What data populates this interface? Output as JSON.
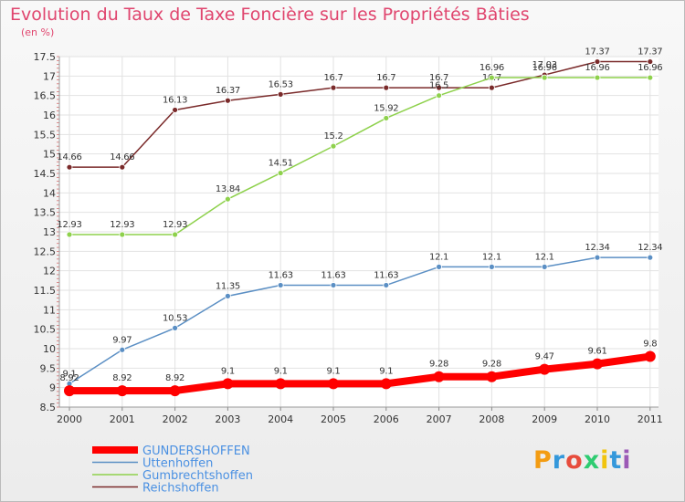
{
  "header": {
    "title": "Evolution du Taux de Taxe Foncière sur les Propriétés Bâties",
    "unit": "(en %)"
  },
  "brand": {
    "text": "Proxiti",
    "colors": [
      "#f39c12",
      "#3498db",
      "#e74c3c",
      "#2ecc71",
      "#f1c40f",
      "#3498db",
      "#9b59b6"
    ]
  },
  "chart_data": {
    "type": "line",
    "title": "Evolution du Taux de Taxe Foncière sur les Propriétés Bâties",
    "ylabel": "(en %)",
    "xlabel": "",
    "x": [
      "2000",
      "2001",
      "2002",
      "2003",
      "2004",
      "2005",
      "2006",
      "2007",
      "2008",
      "2009",
      "2010",
      "2011"
    ],
    "ylim": [
      8.5,
      17.5
    ],
    "yticks": [
      "8.5",
      "9",
      "9.5",
      "10",
      "10.5",
      "11",
      "11.5",
      "12",
      "12.5",
      "13",
      "13.5",
      "14",
      "14.5",
      "15",
      "15.5",
      "16",
      "16.5",
      "17",
      "17.5"
    ],
    "grid": true,
    "legend_position": "bottom-left",
    "series": [
      {
        "name": "GUNDERSHOFFEN",
        "color": "#ff0000",
        "width": 8,
        "values": [
          8.92,
          8.92,
          8.92,
          9.1,
          9.1,
          9.1,
          9.1,
          9.28,
          9.28,
          9.47,
          9.61,
          9.8
        ],
        "labels": [
          "8.92",
          "8.92",
          "8.92",
          "9.1",
          "9.1",
          "9.1",
          "9.1",
          "9.28",
          "9.28",
          "9.47",
          "9.61",
          "9.8"
        ]
      },
      {
        "name": "Uttenhoffen",
        "color": "#5b8fc4",
        "width": 1.5,
        "values": [
          9.1,
          9.97,
          10.53,
          11.35,
          11.63,
          11.63,
          11.63,
          12.1,
          12.1,
          12.1,
          12.34,
          12.34
        ],
        "labels": [
          "9.1",
          "9.97",
          "10.53",
          "11.35",
          "11.63",
          "11.63",
          "11.63",
          "12.1",
          "12.1",
          "12.1",
          "12.34",
          "12.34"
        ]
      },
      {
        "name": "Gumbrechtshoffen",
        "color": "#8ed14c",
        "width": 1.5,
        "values": [
          12.93,
          12.93,
          12.93,
          13.84,
          14.51,
          15.2,
          15.92,
          16.5,
          16.96,
          16.96,
          16.96,
          16.96
        ],
        "labels": [
          "12.93",
          "12.93",
          "12.93",
          "13.84",
          "14.51",
          "15.2",
          "15.92",
          "16.5",
          "16.96",
          "16.96",
          "16.96",
          "16.96"
        ]
      },
      {
        "name": "Reichshoffen",
        "color": "#7a2a2a",
        "width": 1.5,
        "values": [
          14.66,
          14.66,
          16.13,
          16.37,
          16.53,
          16.7,
          16.7,
          16.7,
          16.7,
          17.03,
          17.37,
          17.37
        ],
        "labels": [
          "14.66",
          "14.66",
          "16.13",
          "16.37",
          "16.53",
          "16.7",
          "16.7",
          "16.7",
          "16.7",
          "17.03",
          "17.37",
          "17.37"
        ]
      }
    ]
  }
}
